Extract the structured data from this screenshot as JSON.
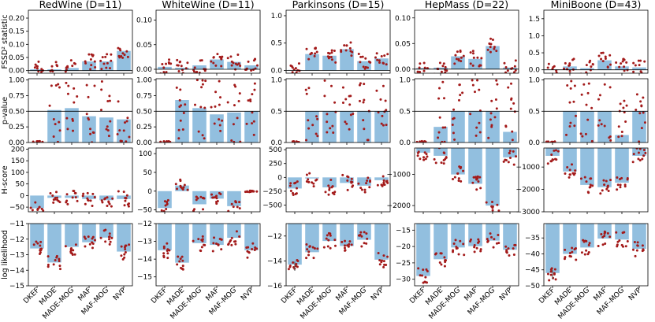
{
  "chart_data": {
    "type": "bar",
    "layout": "grid",
    "columns": [
      "RedWine (D=11)",
      "WhiteWine (D=11)",
      "Parkinsons (D=15)",
      "HepMass (D=22)",
      "MiniBoone (D=43)"
    ],
    "categories": [
      "DKEF",
      "MADE",
      "MADE-MOG",
      "MAF",
      "MAF-MOG",
      "NVP"
    ],
    "rows": [
      {
        "metric": "FSSD",
        "ylabel": "FSSD² statistic",
        "panels": [
          {
            "ylim": [
              -0.01,
              0.23
            ],
            "ticks": [
              "0.00",
              "0.05",
              "0.10",
              "0.15",
              "0.20"
            ],
            "ref": 0,
            "values": [
              0.005,
              0.005,
              0.01,
              0.035,
              0.035,
              0.075
            ]
          },
          {
            "ylim": [
              -0.008,
              0.12
            ],
            "ticks": [
              "0.00",
              "0.05",
              "0.10"
            ],
            "ref": 0,
            "values": [
              0.005,
              0.003,
              0.008,
              0.02,
              0.015,
              0.008
            ]
          },
          {
            "ylim": [
              -0.05,
              1.1
            ],
            "ticks": [
              "0.0",
              "0.5",
              "1.0"
            ],
            "ref": 0,
            "values": [
              0.01,
              0.3,
              0.27,
              0.39,
              0.17,
              0.22
            ]
          },
          {
            "ylim": [
              -0.008,
              0.115
            ],
            "ticks": [
              "0.00",
              "0.05",
              "0.10"
            ],
            "ref": 0,
            "values": [
              0.002,
              0.003,
              0.025,
              0.02,
              0.045,
              0.003
            ]
          },
          {
            "ylim": [
              -0.1,
              1.75
            ],
            "ticks": [
              "0.0",
              "0.5",
              "1.0",
              "1.5"
            ],
            "ref": 0,
            "values": [
              0.01,
              0.1,
              0.05,
              0.28,
              0.1,
              0.07
            ]
          }
        ]
      },
      {
        "metric": "p-value",
        "ylabel": "p-value",
        "panels": [
          {
            "ylim": [
              0,
              1.02
            ],
            "ticks": [
              "0.00",
              "0.25",
              "0.50",
              "0.75",
              "1.00"
            ],
            "ref": 0.5,
            "values": [
              0,
              0.52,
              0.55,
              0.42,
              0.4,
              0.37
            ]
          },
          {
            "ylim": [
              0,
              1.02
            ],
            "ticks": [
              "0.00",
              "0.25",
              "0.50",
              "0.75",
              "1.00"
            ],
            "ref": 0.5,
            "values": [
              0,
              0.68,
              0.55,
              0.45,
              0.48,
              0.5
            ]
          },
          {
            "ylim": [
              0,
              1.02
            ],
            "ticks": [
              "0.0",
              "0.5",
              "1.0"
            ],
            "ref": 0.5,
            "values": [
              0,
              0.5,
              0.5,
              0.5,
              0.5,
              0.5
            ]
          },
          {
            "ylim": [
              0,
              1.02
            ],
            "ticks": [
              "0.0",
              "0.5",
              "1.0"
            ],
            "ref": 0.5,
            "values": [
              0,
              0.25,
              0.5,
              0.5,
              0.5,
              0.17
            ]
          },
          {
            "ylim": [
              0,
              1.02
            ],
            "ticks": [
              "0.0",
              "0.5",
              "1.0"
            ],
            "ref": 0.5,
            "values": [
              0,
              0.5,
              0.5,
              0.5,
              0.12,
              0.5
            ]
          }
        ]
      },
      {
        "metric": "H-score",
        "ylabel": "H-score",
        "panels": [
          {
            "ylim": [
              -70,
              205
            ],
            "ticks": [
              "−50",
              "0",
              "50",
              "100",
              "150",
              "200"
            ],
            "ref": null,
            "values": [
              -55,
              -10,
              -10,
              -15,
              -20,
              -15
            ]
          },
          {
            "ylim": [
              -55,
              115
            ],
            "ticks": [
              "−50",
              "0",
              "50",
              "100"
            ],
            "ref": null,
            "values": [
              -45,
              15,
              -35,
              -20,
              -40,
              0
            ]
          },
          {
            "ylim": [
              -620,
              530
            ],
            "ticks": [
              "−500",
              "−250",
              "0",
              "250",
              "500"
            ],
            "ref": null,
            "values": [
              -200,
              -20,
              -180,
              -100,
              -150,
              -50
            ]
          },
          {
            "ylim": [
              -2200,
              -150
            ],
            "ticks": [
              "−2000",
              "−1000"
            ],
            "ref": null,
            "values": [
              -300,
              -400,
              -1000,
              -1300,
              -2000,
              -450
            ]
          },
          {
            "ylim": [
              -3000,
              -150
            ],
            "ticks": [
              "−3000",
              "−2000",
              "−1000"
            ],
            "ref": null,
            "values": [
              -500,
              -1200,
              -1800,
              -1900,
              -1700,
              -500
            ]
          }
        ]
      },
      {
        "metric": "log likelihood",
        "ylabel": "log likelihood",
        "panels": [
          {
            "ylim": [
              -15,
              -11
            ],
            "ticks": [
              "−15",
              "−14",
              "−13",
              "−12",
              "−11"
            ],
            "ref": null,
            "values": [
              -12.6,
              -13.5,
              -12.5,
              -12.2,
              -11.9,
              -12.8
            ]
          },
          {
            "ylim": [
              -15.5,
              -12
            ],
            "ticks": [
              "−15",
              "−14",
              "−13",
              "−12"
            ],
            "ref": null,
            "values": [
              -13.5,
              -14.2,
              -13.1,
              -13.2,
              -12.8,
              -13.5
            ]
          },
          {
            "ylim": [
              -16,
              -11
            ],
            "ticks": [
              "−16",
              "−14",
              "−12"
            ],
            "ref": null,
            "values": [
              -14.3,
              -13.3,
              -12.4,
              -12.8,
              -12.3,
              -13.9
            ]
          },
          {
            "ylim": [
              -32,
              -13
            ],
            "ticks": [
              "−30",
              "−25",
              "−20",
              "−15"
            ],
            "ref": null,
            "values": [
              -29,
              -23.9,
              -20.3,
              -19.9,
              -18.2,
              -21
            ]
          },
          {
            "ylim": [
              -50,
              -30.5
            ],
            "ticks": [
              "−50",
              "−45",
              "−40",
              "−35"
            ],
            "ref": null,
            "values": [
              -46,
              -40,
              -38,
              -35.2,
              -35.5,
              -38.4
            ]
          }
        ]
      }
    ]
  }
}
